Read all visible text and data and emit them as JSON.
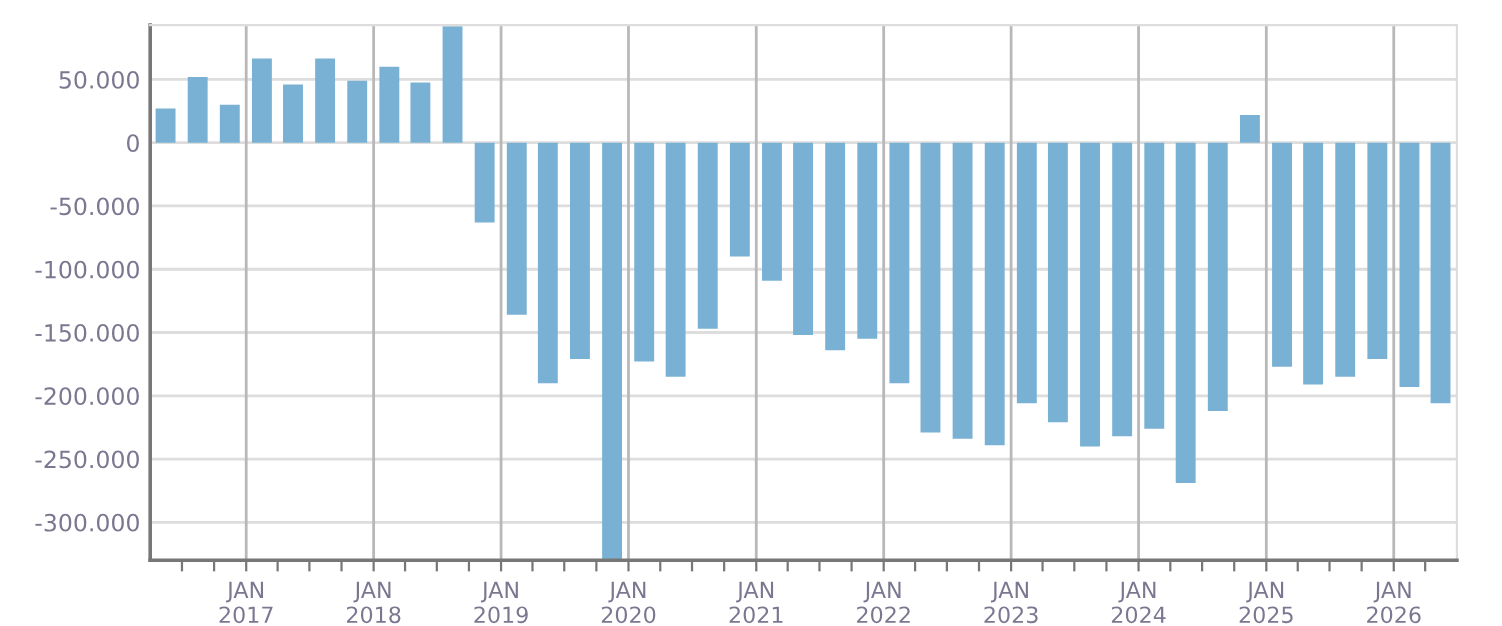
{
  "chart_data": {
    "type": "bar",
    "color": "#78b1d4",
    "x": [
      "2016-05-15",
      "2016-08-15",
      "2016-11-15",
      "2017-02-15",
      "2017-05-15",
      "2017-08-15",
      "2017-11-15",
      "2018-02-15",
      "2018-05-15",
      "2018-08-15",
      "2018-11-15",
      "2019-02-15",
      "2019-05-15",
      "2019-08-15",
      "2019-11-15",
      "2020-02-15",
      "2020-05-15",
      "2020-08-15",
      "2020-11-15",
      "2021-02-15",
      "2021-05-15",
      "2021-08-15",
      "2021-11-15",
      "2022-02-15",
      "2022-05-15",
      "2022-08-15",
      "2022-11-15",
      "2023-02-15",
      "2023-05-15",
      "2023-08-15",
      "2023-11-15",
      "2024-02-15",
      "2024-05-15",
      "2024-08-15",
      "2024-11-15",
      "2025-02-15",
      "2025-05-15",
      "2025-08-15",
      "2025-11-15",
      "2026-02-15",
      "2026-05-15"
    ],
    "values": [
      27000,
      52000,
      30000,
      66500,
      46000,
      66500,
      49000,
      60000,
      47500,
      92000,
      -63000,
      -136000,
      -190000,
      -171000,
      -330000,
      -173000,
      -185000,
      -147000,
      -90000,
      -109000,
      -152000,
      -164000,
      -155000,
      -190000,
      -229000,
      -234000,
      -239000,
      -206000,
      -221000,
      -240000,
      -232000,
      -226000,
      -269000,
      -212000,
      22000,
      -177000,
      -191000,
      -185000,
      -171000,
      -193000,
      -206000
    ],
    "xlim": [
      "2016-04-01",
      "2026-07-01"
    ],
    "ylim": [
      -330000,
      93000
    ],
    "xticks": [
      {
        "value": "2016-07-01",
        "label": null
      },
      {
        "value": "2016-10-01",
        "label": null
      },
      {
        "value": "2017-01-01",
        "label": "JAN\n2017"
      },
      {
        "value": "2017-04-01",
        "label": null
      },
      {
        "value": "2017-07-01",
        "label": null
      },
      {
        "value": "2017-10-01",
        "label": null
      },
      {
        "value": "2018-01-01",
        "label": "JAN\n2018"
      },
      {
        "value": "2018-04-01",
        "label": null
      },
      {
        "value": "2018-07-01",
        "label": null
      },
      {
        "value": "2018-10-01",
        "label": null
      },
      {
        "value": "2019-01-01",
        "label": "JAN\n2019"
      },
      {
        "value": "2019-04-01",
        "label": null
      },
      {
        "value": "2019-07-01",
        "label": null
      },
      {
        "value": "2019-10-01",
        "label": null
      },
      {
        "value": "2020-01-01",
        "label": "JAN\n2020"
      },
      {
        "value": "2020-04-01",
        "label": null
      },
      {
        "value": "2020-07-01",
        "label": null
      },
      {
        "value": "2020-10-01",
        "label": null
      },
      {
        "value": "2021-01-01",
        "label": "JAN\n2021"
      },
      {
        "value": "2021-04-01",
        "label": null
      },
      {
        "value": "2021-07-01",
        "label": null
      },
      {
        "value": "2021-10-01",
        "label": null
      },
      {
        "value": "2022-01-01",
        "label": "JAN\n2022"
      },
      {
        "value": "2022-04-01",
        "label": null
      },
      {
        "value": "2022-07-01",
        "label": null
      },
      {
        "value": "2022-10-01",
        "label": null
      },
      {
        "value": "2023-01-01",
        "label": "JAN\n2023"
      },
      {
        "value": "2023-04-01",
        "label": null
      },
      {
        "value": "2023-07-01",
        "label": null
      },
      {
        "value": "2023-10-01",
        "label": null
      },
      {
        "value": "2024-01-01",
        "label": "JAN\n2024"
      },
      {
        "value": "2024-04-01",
        "label": null
      },
      {
        "value": "2024-07-01",
        "label": null
      },
      {
        "value": "2024-10-01",
        "label": null
      },
      {
        "value": "2025-01-01",
        "label": "JAN\n2025"
      },
      {
        "value": "2025-04-01",
        "label": null
      },
      {
        "value": "2025-07-01",
        "label": null
      },
      {
        "value": "2025-10-01",
        "label": null
      },
      {
        "value": "2026-01-01",
        "label": "JAN\n2026"
      },
      {
        "value": "2026-04-01",
        "label": null
      }
    ],
    "yticks": [
      {
        "value": -300000,
        "label": "-300.000"
      },
      {
        "value": -250000,
        "label": "-250.000"
      },
      {
        "value": -200000,
        "label": "-200.000"
      },
      {
        "value": -150000,
        "label": "-150.000"
      },
      {
        "value": -100000,
        "label": "-100.000"
      },
      {
        "value": -50000,
        "label": "-50.000"
      },
      {
        "value": 0,
        "label": "0"
      },
      {
        "value": 50000,
        "label": "50.000"
      }
    ],
    "grid": true
  }
}
